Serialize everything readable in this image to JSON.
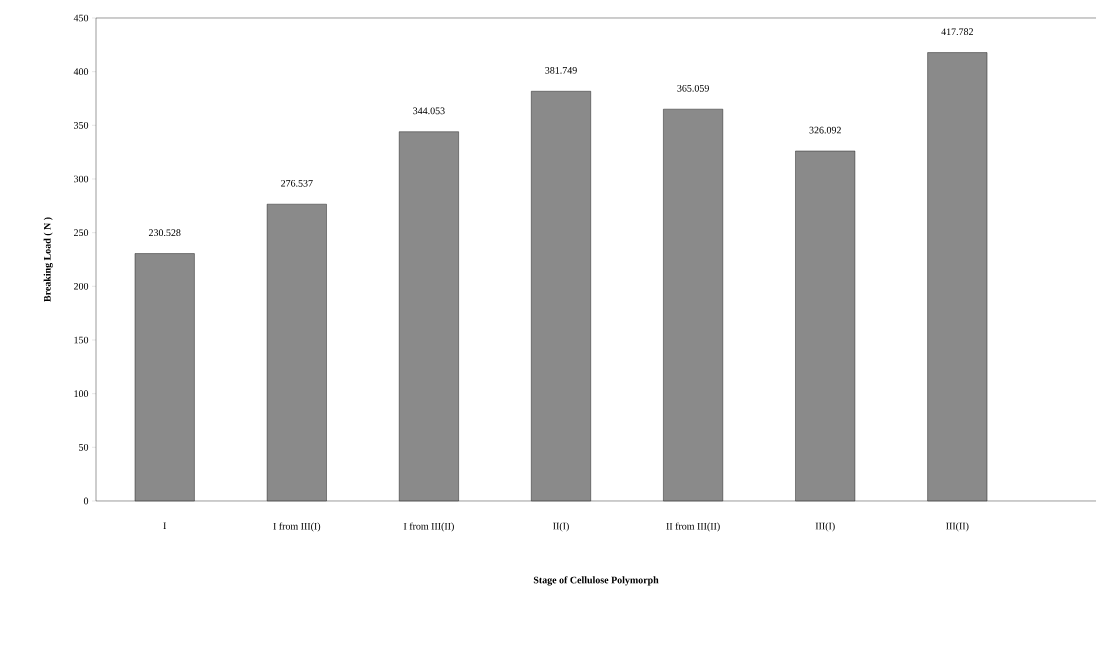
{
  "chart_data": {
    "type": "bar",
    "xlabel": "Stage of Cellulose Polymorph",
    "ylabel": "Breaking Load ( N )",
    "categories": [
      "I",
      "I from III(I)",
      "I from III(II)",
      "II(I)",
      "II from III(II)",
      "III(I)",
      "III(II)"
    ],
    "values": [
      230.528,
      276.537,
      344.053,
      381.749,
      365.059,
      326.092,
      417.782
    ],
    "color": "#8a8a8a",
    "data_labels": true,
    "ylim": [
      0,
      450
    ],
    "yticks": [
      0,
      50,
      100,
      150,
      200,
      250,
      300,
      350,
      400,
      450
    ],
    "grid": false
  }
}
